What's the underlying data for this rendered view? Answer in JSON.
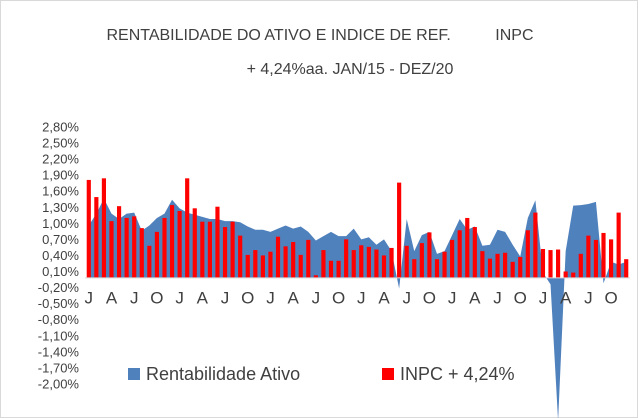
{
  "chart_data": {
    "type": "bar_area",
    "title": "RENTABILIDADE DO ATIVO E INDICE DE REF.          INPC",
    "subtitle": "+ 4,24%aa. JAN/15 - DEZ/20",
    "categories": [
      "J",
      null,
      null,
      "A",
      null,
      null,
      "J",
      null,
      null,
      "O",
      null,
      null,
      "J",
      null,
      null,
      "A",
      null,
      null,
      "J",
      null,
      null,
      "O",
      null,
      null,
      "J",
      null,
      null,
      "A",
      null,
      null,
      "J",
      null,
      null,
      "O",
      null,
      null,
      "J",
      null,
      null,
      "A",
      null,
      null,
      "J",
      null,
      null,
      "O",
      null,
      null,
      "J",
      null,
      null,
      "A",
      null,
      null,
      "J",
      null,
      null,
      "O",
      null,
      null,
      "J",
      null,
      null,
      "A",
      null,
      null,
      "J",
      null,
      null,
      "O",
      null,
      null
    ],
    "series": [
      {
        "name": "Rentabilidade Ativo",
        "color": "#4f81bd",
        "kind": "area",
        "values": [
          0.98,
          1.2,
          1.48,
          1.2,
          1.1,
          1.2,
          1.22,
          0.88,
          0.98,
          1.12,
          1.2,
          1.46,
          1.3,
          1.22,
          1.18,
          1.14,
          1.1,
          1.1,
          1.06,
          1.06,
          1.04,
          0.96,
          0.9,
          0.9,
          0.86,
          0.92,
          0.98,
          0.92,
          0.96,
          0.86,
          0.7,
          0.78,
          0.86,
          0.78,
          0.78,
          0.92,
          0.72,
          0.76,
          0.62,
          0.72,
          0.5,
          -0.2,
          1.1,
          0.5,
          0.8,
          0.86,
          0.45,
          0.5,
          0.8,
          1.1,
          0.9,
          0.96,
          0.6,
          0.62,
          0.9,
          0.86,
          0.62,
          0.4,
          1.12,
          1.45,
          0.1,
          -0.12,
          -2.67,
          0.5,
          1.35,
          1.36,
          1.38,
          1.42,
          -0.1,
          0.3,
          0.25,
          0.3
        ]
      },
      {
        "name": "INPC + 4,24%",
        "color": "#ff0000",
        "kind": "bar",
        "values": [
          1.83,
          1.51,
          1.86,
          1.06,
          1.34,
          1.12,
          1.15,
          0.93,
          0.6,
          0.86,
          1.12,
          1.36,
          1.25,
          1.86,
          1.3,
          1.05,
          1.05,
          1.33,
          0.95,
          1.05,
          0.79,
          0.43,
          0.52,
          0.42,
          0.49,
          0.77,
          0.59,
          0.67,
          0.43,
          0.71,
          0.05,
          0.52,
          0.32,
          0.32,
          0.72,
          0.52,
          0.61,
          0.58,
          0.53,
          0.42,
          0.56,
          1.78,
          0.6,
          0.35,
          0.65,
          0.85,
          0.35,
          0.49,
          0.71,
          0.89,
          1.12,
          0.95,
          0.5,
          0.36,
          0.45,
          0.47,
          0.3,
          0.39,
          0.89,
          1.22,
          0.54,
          0.52,
          0.53,
          0.12,
          0.1,
          0.45,
          0.79,
          0.71,
          0.84,
          0.72,
          1.22,
          0.35
        ]
      }
    ],
    "ylim": [
      -2.0,
      2.8
    ],
    "yticks": [
      {
        "value": 2.8,
        "label": "2,80%"
      },
      {
        "value": 2.5,
        "label": "2,50%"
      },
      {
        "value": 2.2,
        "label": "2,20%"
      },
      {
        "value": 1.9,
        "label": "1,90%"
      },
      {
        "value": 1.6,
        "label": "1,60%"
      },
      {
        "value": 1.3,
        "label": "1,30%"
      },
      {
        "value": 1.0,
        "label": "1,00%"
      },
      {
        "value": 0.7,
        "label": "0,70%"
      },
      {
        "value": 0.4,
        "label": "0,40%"
      },
      {
        "value": 0.1,
        "label": "0,10%"
      },
      {
        "value": -0.2,
        "label": "-0,20%"
      },
      {
        "value": -0.5,
        "label": "-0,50%"
      },
      {
        "value": -0.8,
        "label": "-0,80%"
      },
      {
        "value": -1.1,
        "label": "-1,10%"
      },
      {
        "value": -1.4,
        "label": "-1,40%"
      },
      {
        "value": -1.7,
        "label": "-1,70%"
      },
      {
        "value": -2.0,
        "label": "-2,00%"
      }
    ],
    "legend": "bottom"
  }
}
